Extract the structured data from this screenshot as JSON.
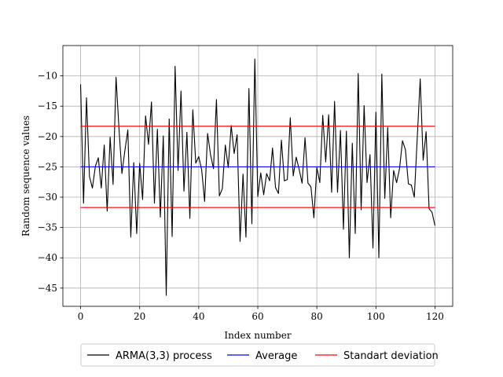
{
  "chart_data": {
    "type": "line",
    "xlabel": "Index number",
    "ylabel": "Random sequence values",
    "xlim": [
      -6,
      126
    ],
    "ylim": [
      -48,
      -5
    ],
    "xticks": [
      0,
      20,
      40,
      60,
      80,
      100,
      120
    ],
    "yticks": [
      -45,
      -40,
      -35,
      -30,
      -25,
      -20,
      -15,
      -10
    ],
    "xtick_labels": [
      "0",
      "20",
      "40",
      "60",
      "80",
      "100",
      "120"
    ],
    "ytick_labels": [
      "−45",
      "−40",
      "−35",
      "−30",
      "−25",
      "−20",
      "−15",
      "−10"
    ],
    "grid": true,
    "legend_position": "below",
    "series": [
      {
        "name": "ARMA(3,3) process",
        "color": "#000000",
        "x": [
          0,
          1,
          2,
          3,
          4,
          5,
          6,
          7,
          8,
          9,
          10,
          11,
          12,
          13,
          14,
          15,
          16,
          17,
          18,
          19,
          20,
          21,
          22,
          23,
          24,
          25,
          26,
          27,
          28,
          29,
          30,
          31,
          32,
          33,
          34,
          35,
          36,
          37,
          38,
          39,
          40,
          41,
          42,
          43,
          44,
          45,
          46,
          47,
          48,
          49,
          50,
          51,
          52,
          53,
          54,
          55,
          56,
          57,
          58,
          59,
          60,
          61,
          62,
          63,
          64,
          65,
          66,
          67,
          68,
          69,
          70,
          71,
          72,
          73,
          74,
          75,
          76,
          77,
          78,
          79,
          80,
          81,
          82,
          83,
          84,
          85,
          86,
          87,
          88,
          89,
          90,
          91,
          92,
          93,
          94,
          95,
          96,
          97,
          98,
          99,
          100,
          101,
          102,
          103,
          104,
          105,
          106,
          107,
          108,
          109,
          110,
          111,
          112,
          113,
          114,
          115,
          116,
          117,
          118,
          119,
          120
        ],
        "values": [
          -11.4,
          -31,
          -13.6,
          -26.6,
          -28.5,
          -24.9,
          -23.5,
          -28.5,
          -21.4,
          -32.3,
          -20.1,
          -27.9,
          -10.2,
          -18.7,
          -26.1,
          -22.3,
          -18.9,
          -36.6,
          -24.3,
          -36,
          -24.4,
          -30.4,
          -16.6,
          -21.3,
          -14.3,
          -31,
          -18.8,
          -33.3,
          -19.9,
          -46.2,
          -17.1,
          -36.5,
          -8.4,
          -25.6,
          -12.5,
          -29,
          -19.3,
          -33.5,
          -15.6,
          -24.4,
          -23.3,
          -25.5,
          -30.7,
          -19.5,
          -23,
          -25.3,
          -13.9,
          -29.8,
          -28.6,
          -21.4,
          -25.1,
          -18.2,
          -22.8,
          -19.7,
          -37.3,
          -26.2,
          -36.6,
          -12.1,
          -34.4,
          -7.2,
          -29.9,
          -26,
          -29.6,
          -26.1,
          -27.3,
          -21.9,
          -28.4,
          -29.4,
          -20.6,
          -27.3,
          -27.1,
          -16.9,
          -26.5,
          -23.4,
          -25.4,
          -27.7,
          -20.2,
          -27.7,
          -28.3,
          -33.4,
          -25.1,
          -27.6,
          -16.5,
          -24.2,
          -16.4,
          -29.2,
          -14.2,
          -29.2,
          -19,
          -35.3,
          -19.1,
          -40,
          -21.1,
          -36,
          -9.6,
          -32.1,
          -14.9,
          -27.6,
          -23,
          -38.4,
          -16,
          -40,
          -9.7,
          -30.2,
          -18.5,
          -33.4,
          -25.6,
          -27.6,
          -25.3,
          -20.7,
          -22.2,
          -27.8,
          -28,
          -30,
          -20.2,
          -10.5,
          -23.9,
          -19.2,
          -31.9,
          -32.5,
          -34.7
        ]
      },
      {
        "name": "Average",
        "color": "#0000ff",
        "x": [
          0,
          120
        ],
        "values": [
          -25,
          -25
        ]
      },
      {
        "name": "Standart deviation",
        "color": "#ff0000",
        "x": [
          0,
          120
        ],
        "values": [
          -18.3,
          -18.3
        ]
      },
      {
        "name": "",
        "color": "#ff0000",
        "x": [
          0,
          120
        ],
        "values": [
          -31.7,
          -31.7
        ]
      }
    ],
    "legend": [
      "ARMA(3,3) process",
      "Average",
      "Standart deviation"
    ]
  }
}
